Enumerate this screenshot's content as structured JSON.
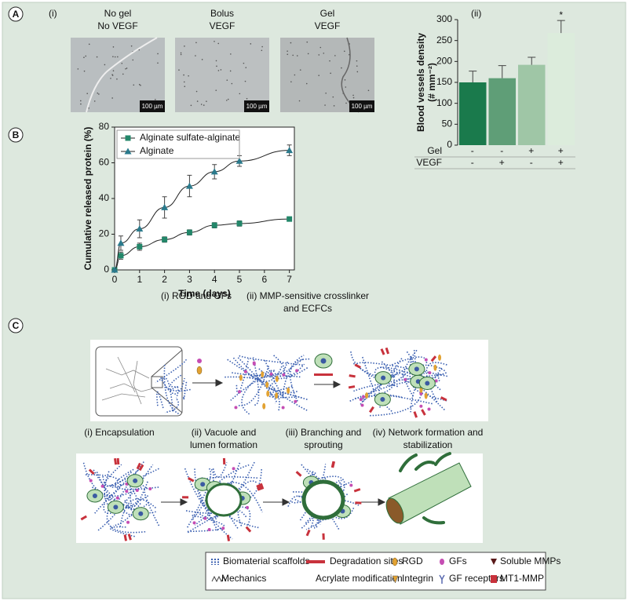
{
  "panels": {
    "a": "A",
    "b": "B",
    "c": "C"
  },
  "panel_a": {
    "label": "(i)",
    "images": [
      {
        "title": [
          "No gel",
          "No VEGF"
        ],
        "scale": "100 µm"
      },
      {
        "title": [
          "Bolus",
          "VEGF"
        ],
        "scale": "100 µm"
      },
      {
        "title": [
          "Gel",
          "VEGF"
        ],
        "scale": "100 µm"
      }
    ]
  },
  "chart_data": [
    {
      "type": "bar",
      "label": "(ii)",
      "y_label": [
        "Blood vessels density",
        "(# mm⁻²)"
      ],
      "category_rows": [
        {
          "name": "Gel",
          "labels": [
            "-",
            "-",
            "+",
            "+"
          ]
        },
        {
          "name": "VEGF",
          "labels": [
            "-",
            "+",
            "-",
            "+"
          ]
        }
      ],
      "values": [
        150,
        160,
        192,
        268
      ],
      "errors": [
        27,
        30,
        18,
        30
      ],
      "colors": [
        "#1a7a4c",
        "#5f9e77",
        "#9fc6a6",
        "#dcecdc"
      ],
      "annotation": "*",
      "ylim": [
        0,
        300
      ],
      "yticks": [
        0,
        50,
        100,
        150,
        200,
        250,
        300
      ]
    },
    {
      "type": "line",
      "x_label": "Time (days)",
      "y_label": "Cumulative released protein (%)",
      "x": [
        0,
        0.25,
        1,
        2,
        3,
        4,
        5,
        7
      ],
      "series": [
        {
          "name": "Alginate sulfate-alginate",
          "color": "#23876a",
          "marker": "square",
          "values": [
            0,
            8,
            13,
            17,
            21,
            25,
            26,
            28.5
          ],
          "errors": [
            0,
            2,
            2,
            1.5,
            1.5,
            1.5,
            1.5,
            1
          ]
        },
        {
          "name": "Alginate",
          "color": "#2a7a8c",
          "marker": "triangle",
          "values": [
            0,
            15,
            23,
            35,
            47,
            55,
            61,
            67
          ],
          "errors": [
            0,
            4,
            5,
            6,
            6,
            4,
            3,
            3
          ]
        }
      ],
      "xlim": [
        0,
        7.2
      ],
      "ylim": [
        0,
        80
      ],
      "xticks": [
        0,
        1,
        2,
        3,
        4,
        5,
        6,
        7
      ],
      "yticks": [
        0,
        20,
        40,
        60,
        80
      ]
    }
  ],
  "panel_c": {
    "row1": [
      [
        "(i) RGD and GFs"
      ],
      [
        "(ii) MMP-sensitive crosslinker",
        "and ECFCs"
      ]
    ],
    "row2": [
      [
        "(i) Encapsulation"
      ],
      [
        "(ii) Vacuole and",
        "lumen formation"
      ],
      [
        "(iii) Branching and",
        "sprouting"
      ],
      [
        "(iv) Network formation and",
        "stabilization"
      ]
    ]
  },
  "legend": [
    "Biomaterial scaffolds",
    "Degradation sites",
    "RGD",
    "GFs",
    "Soluble MMPs",
    "Mechanics",
    "Acrylate modification",
    "Integrin",
    "GF receptors",
    "MT1-MMP"
  ]
}
